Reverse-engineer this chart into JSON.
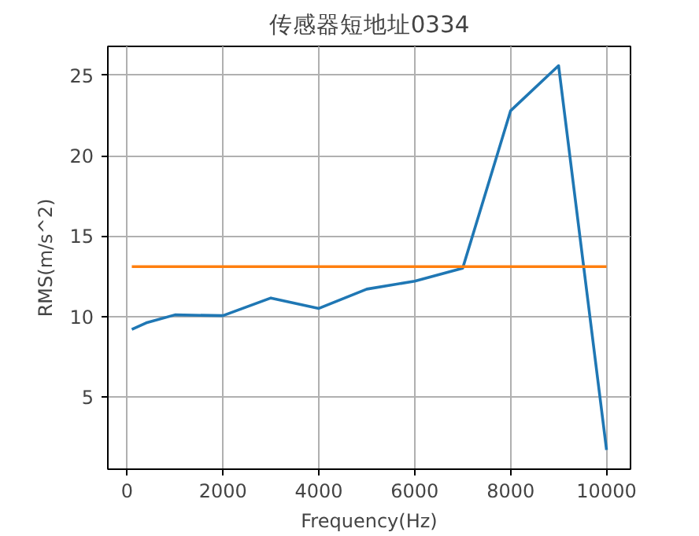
{
  "chart_data": {
    "type": "line",
    "title": "传感器短地址0334",
    "xlabel": "Frequency(Hz)",
    "ylabel": "RMS(m/s^2)",
    "x": [
      100,
      400,
      1000,
      2000,
      3000,
      4000,
      5000,
      6000,
      7000,
      8000,
      9000,
      10000
    ],
    "series": [
      {
        "color": "#1f77b4",
        "values": [
          9.2,
          9.6,
          10.1,
          10.05,
          11.15,
          10.5,
          11.7,
          12.2,
          13.0,
          22.8,
          25.6,
          1.7
        ]
      },
      {
        "color": "#ff7f0e",
        "values": [
          13.1,
          13.1,
          13.1,
          13.1,
          13.1,
          13.1,
          13.1,
          13.1,
          13.1,
          13.1,
          13.1,
          13.1
        ]
      }
    ],
    "xlim": [
      -400,
      10500
    ],
    "ylim": [
      0.5,
      26.8
    ],
    "xticks": [
      0,
      2000,
      4000,
      6000,
      8000,
      10000
    ],
    "yticks": [
      5,
      10,
      15,
      20,
      25
    ],
    "grid": true
  }
}
